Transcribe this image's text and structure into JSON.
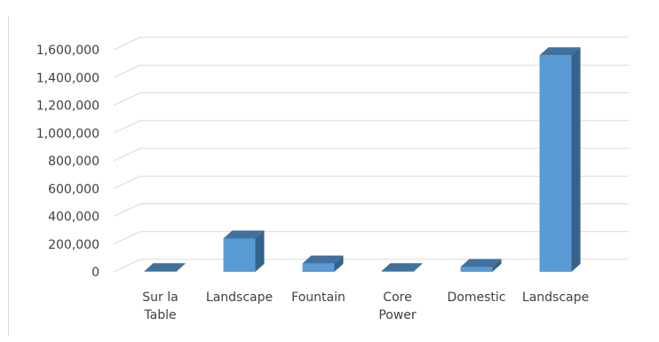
{
  "chart_data": {
    "type": "bar",
    "style": "3d-column",
    "title": "",
    "xlabel": "",
    "ylabel": "",
    "ylim": [
      0,
      1600000
    ],
    "yticks": [
      0,
      200000,
      400000,
      600000,
      800000,
      1000000,
      1200000,
      1400000,
      1600000
    ],
    "ytick_labels": [
      "0",
      "200,000",
      "400,000",
      "600,000",
      "800,000",
      "1,000,000",
      "1,200,000",
      "1,400,000",
      "1,600,000"
    ],
    "categories": [
      [
        "Sur la",
        "Table"
      ],
      [
        "Landscape"
      ],
      [
        "Fountain"
      ],
      [
        "Core",
        "Power"
      ],
      [
        "Domestic"
      ],
      [
        "Landscape"
      ]
    ],
    "values": [
      5000,
      240000,
      60000,
      5000,
      35000,
      1560000
    ],
    "grid": true,
    "legend": "none",
    "colors": {
      "bar_front": "#5b9bd5",
      "bar_top": "#41719c",
      "bar_side": "#35628c",
      "gridline": "#d9d9d9",
      "text": "#404040"
    }
  }
}
